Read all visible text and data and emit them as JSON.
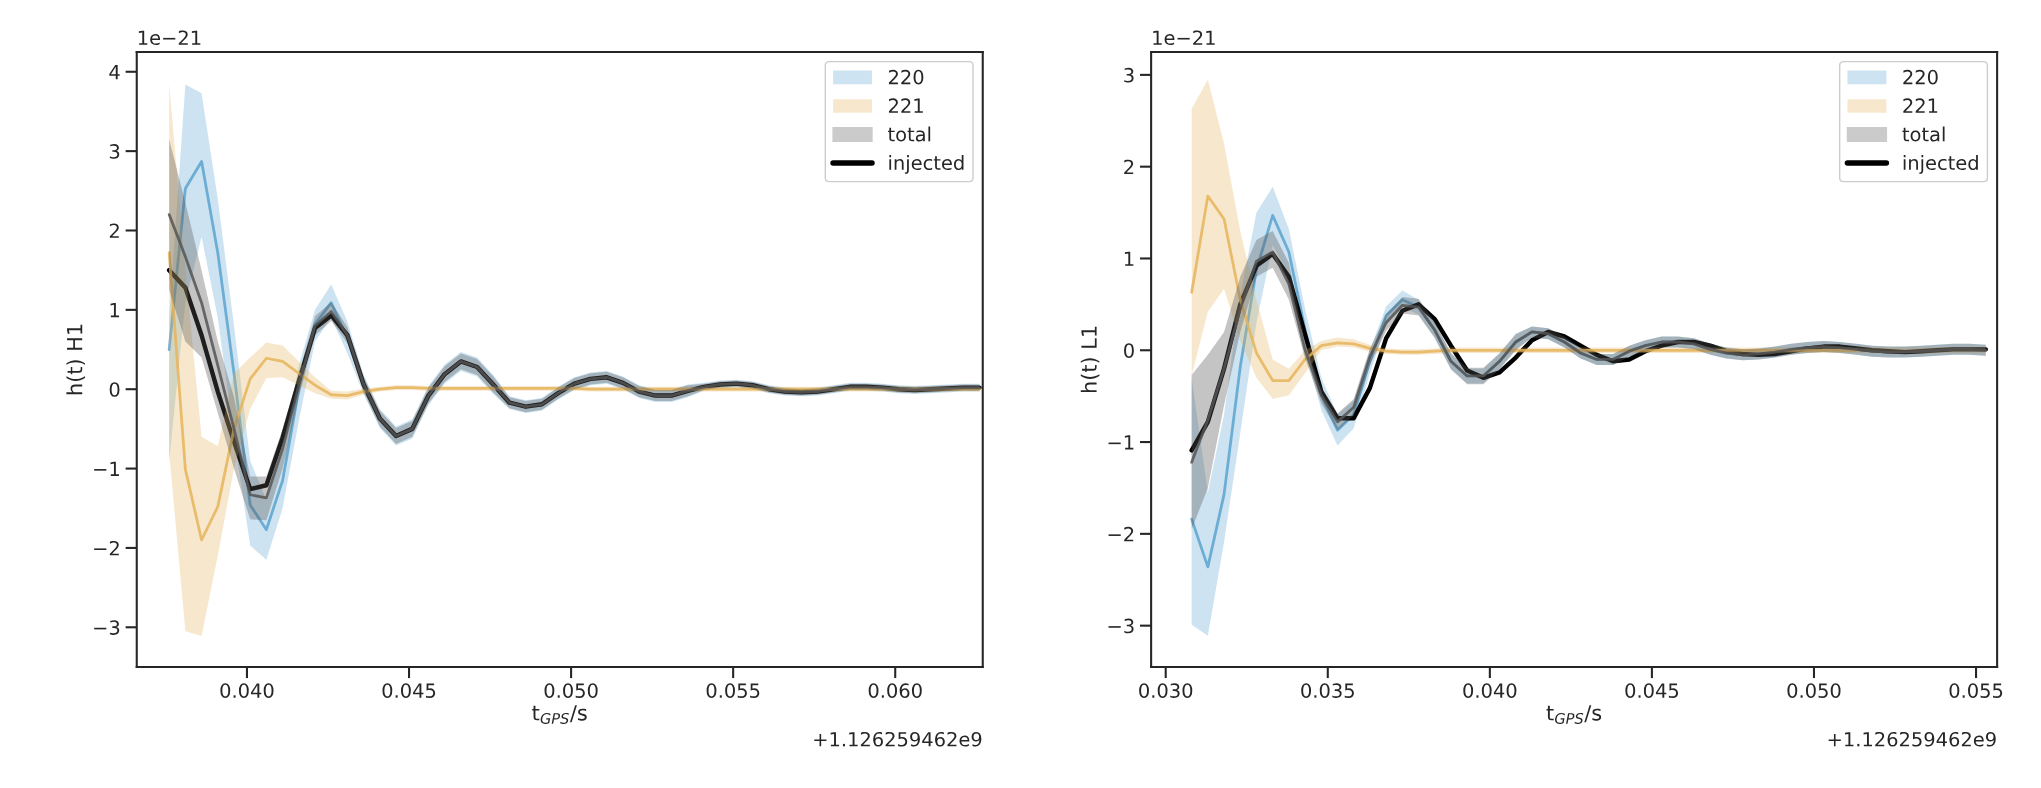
{
  "chart_data": [
    {
      "type": "line",
      "xlabel": "t$_{GPS}$/s",
      "ylabel": "h(t) H1",
      "annotations": [
        "1e−21",
        "+1.126259462e9"
      ],
      "x": [
        0.0376,
        0.0381,
        0.0386,
        0.0391,
        0.0396,
        0.0401,
        0.0406,
        0.0411,
        0.0416,
        0.0421,
        0.0426,
        0.0431,
        0.0436,
        0.0441,
        0.0446,
        0.0451,
        0.0456,
        0.0461,
        0.0466,
        0.0471,
        0.0476,
        0.0481,
        0.0486,
        0.0491,
        0.0496,
        0.0501,
        0.0506,
        0.0511,
        0.0516,
        0.0521,
        0.0526,
        0.0531,
        0.0536,
        0.0541,
        0.0546,
        0.0551,
        0.0556,
        0.0561,
        0.0566,
        0.0571,
        0.0576,
        0.0581,
        0.0586,
        0.0591,
        0.0596,
        0.0601,
        0.0606,
        0.0611,
        0.0616,
        0.0621,
        0.0626
      ],
      "xlim": [
        0.0366,
        0.0627
      ],
      "xticks": [
        {
          "value": 0.04,
          "label": "0.040"
        },
        {
          "value": 0.045,
          "label": "0.045"
        },
        {
          "value": 0.05,
          "label": "0.050"
        },
        {
          "value": 0.055,
          "label": "0.055"
        },
        {
          "value": 0.06,
          "label": "0.060"
        }
      ],
      "ylim": [
        -3.5,
        4.25
      ],
      "yticks": [
        {
          "value": -3,
          "label": "−3"
        },
        {
          "value": -2,
          "label": "−2"
        },
        {
          "value": -1,
          "label": "−1"
        },
        0,
        1,
        2,
        3,
        4
      ],
      "legend": "top right",
      "grid": false,
      "series": [
        {
          "name": "220",
          "color": "#5ba3cf",
          "values": [
            0.5,
            2.53,
            2.87,
            1.72,
            0.2,
            -1.46,
            -1.77,
            -1.15,
            0.0,
            0.82,
            1.09,
            0.64,
            0.06,
            -0.37,
            -0.59,
            -0.5,
            -0.08,
            0.19,
            0.35,
            0.28,
            0.06,
            -0.17,
            -0.22,
            -0.19,
            -0.05,
            0.07,
            0.13,
            0.15,
            0.08,
            -0.03,
            -0.08,
            -0.08,
            -0.02,
            0.03,
            0.06,
            0.07,
            0.05,
            0.0,
            -0.03,
            -0.04,
            -0.03,
            0.0,
            0.03,
            0.03,
            0.02,
            0.0,
            -0.01,
            0.0,
            0.01,
            0.02,
            0.02
          ],
          "lower": [
            -0.9,
            1.1,
            1.92,
            0.9,
            -0.6,
            -1.97,
            -2.15,
            -1.5,
            -0.4,
            0.6,
            0.9,
            0.45,
            -0.06,
            -0.49,
            -0.71,
            -0.62,
            -0.2,
            0.07,
            0.23,
            0.16,
            -0.06,
            -0.25,
            -0.3,
            -0.27,
            -0.13,
            -0.01,
            0.05,
            0.07,
            0.0,
            -0.11,
            -0.16,
            -0.16,
            -0.1,
            -0.02,
            0.01,
            0.02,
            0.0,
            -0.05,
            -0.08,
            -0.09,
            -0.08,
            -0.05,
            -0.02,
            -0.02,
            -0.03,
            -0.05,
            -0.06,
            -0.05,
            -0.04,
            -0.03,
            -0.03
          ],
          "upper": [
            0.9,
            3.84,
            3.73,
            2.4,
            0.8,
            -0.9,
            -1.4,
            -0.8,
            0.3,
            1.0,
            1.32,
            0.85,
            0.18,
            -0.25,
            -0.47,
            -0.38,
            0.04,
            0.31,
            0.47,
            0.4,
            0.18,
            -0.09,
            -0.14,
            -0.11,
            0.03,
            0.15,
            0.21,
            0.23,
            0.16,
            0.05,
            0.0,
            0.0,
            0.06,
            0.08,
            0.11,
            0.12,
            0.1,
            0.05,
            0.02,
            0.01,
            0.02,
            0.05,
            0.08,
            0.08,
            0.07,
            0.05,
            0.04,
            0.05,
            0.06,
            0.07,
            0.07
          ]
        },
        {
          "name": "221",
          "color": "#e6b45a",
          "values": [
            1.72,
            -1.01,
            -1.9,
            -1.48,
            -0.5,
            0.13,
            0.39,
            0.35,
            0.2,
            0.05,
            -0.07,
            -0.08,
            -0.03,
            0.0,
            0.02,
            0.02,
            0.01,
            0.01,
            0.01,
            0.01,
            0.01,
            0.01,
            0.01,
            0.01,
            0.01,
            0.01,
            0.0,
            0.0,
            0.0,
            0.0,
            0.0,
            0.0,
            0.0,
            0.0,
            0.0,
            0.0,
            0.0,
            0.0,
            0.0,
            0.0,
            0.0,
            0.0,
            0.0,
            0.0,
            0.0,
            0.0,
            0.0,
            0.0,
            0.0,
            0.0,
            0.0
          ],
          "lower": [
            -0.8,
            -3.05,
            -3.11,
            -2.1,
            -1.0,
            -0.25,
            0.14,
            0.15,
            0.05,
            -0.05,
            -0.12,
            -0.13,
            -0.07,
            -0.03,
            -0.01,
            -0.01,
            -0.02,
            -0.02,
            -0.02,
            -0.02,
            -0.02,
            -0.02,
            -0.02,
            -0.02,
            -0.02,
            -0.02,
            -0.03,
            -0.03,
            -0.03,
            -0.03,
            -0.03,
            -0.03,
            -0.03,
            -0.03,
            -0.03,
            -0.03,
            -0.03,
            -0.03,
            -0.03,
            -0.03,
            -0.03,
            -0.03,
            -0.03,
            -0.03,
            -0.03,
            -0.03,
            -0.03,
            -0.03,
            -0.03,
            -0.03,
            -0.03
          ],
          "upper": [
            3.85,
            1.5,
            -0.6,
            -0.72,
            0.2,
            0.4,
            0.59,
            0.55,
            0.35,
            0.15,
            -0.02,
            -0.03,
            0.01,
            0.03,
            0.05,
            0.05,
            0.04,
            0.04,
            0.04,
            0.04,
            0.04,
            0.04,
            0.04,
            0.04,
            0.04,
            0.04,
            0.03,
            0.03,
            0.03,
            0.03,
            0.03,
            0.03,
            0.03,
            0.03,
            0.03,
            0.03,
            0.03,
            0.03,
            0.03,
            0.03,
            0.03,
            0.03,
            0.03,
            0.03,
            0.03,
            0.03,
            0.03,
            0.03,
            0.03,
            0.03,
            0.03
          ]
        },
        {
          "name": "total",
          "color": "#555555",
          "values": [
            2.2,
            1.67,
            1.09,
            0.3,
            -0.5,
            -1.33,
            -1.37,
            -0.75,
            0.05,
            0.8,
            0.98,
            0.68,
            0.06,
            -0.37,
            -0.59,
            -0.5,
            -0.08,
            0.19,
            0.35,
            0.28,
            0.06,
            -0.17,
            -0.22,
            -0.19,
            -0.05,
            0.07,
            0.13,
            0.15,
            0.08,
            -0.03,
            -0.08,
            -0.08,
            -0.02,
            0.03,
            0.06,
            0.07,
            0.05,
            0.0,
            -0.03,
            -0.04,
            -0.03,
            0.0,
            0.03,
            0.03,
            0.02,
            0.0,
            -0.01,
            0.0,
            0.01,
            0.02,
            0.02
          ],
          "lower": [
            1.25,
            0.6,
            0.4,
            -0.3,
            -1.0,
            -1.64,
            -1.65,
            -1.0,
            -0.1,
            0.68,
            0.86,
            0.58,
            -0.04,
            -0.47,
            -0.69,
            -0.6,
            -0.18,
            0.09,
            0.25,
            0.18,
            -0.04,
            -0.24,
            -0.29,
            -0.26,
            -0.12,
            0.0,
            0.06,
            0.08,
            0.01,
            -0.1,
            -0.15,
            -0.15,
            -0.09,
            -0.01,
            0.02,
            0.03,
            0.01,
            -0.04,
            -0.07,
            -0.08,
            -0.07,
            -0.04,
            -0.01,
            -0.01,
            -0.02,
            -0.04,
            -0.05,
            -0.04,
            -0.03,
            -0.02,
            -0.02
          ],
          "upper": [
            3.15,
            2.35,
            1.5,
            0.6,
            -0.1,
            -1.1,
            -1.1,
            -0.5,
            0.2,
            0.92,
            1.1,
            0.78,
            0.16,
            -0.27,
            -0.49,
            -0.4,
            0.02,
            0.29,
            0.45,
            0.38,
            0.16,
            -0.1,
            -0.15,
            -0.12,
            0.02,
            0.14,
            0.2,
            0.22,
            0.15,
            0.04,
            -0.01,
            -0.01,
            0.05,
            0.07,
            0.1,
            0.11,
            0.09,
            0.04,
            0.01,
            0.0,
            0.01,
            0.04,
            0.07,
            0.07,
            0.06,
            0.04,
            0.03,
            0.04,
            0.05,
            0.06,
            0.06
          ]
        },
        {
          "name": "injected",
          "color": "#000000",
          "values": [
            1.5,
            1.28,
            0.68,
            -0.03,
            -0.66,
            -1.26,
            -1.21,
            -0.61,
            0.1,
            0.77,
            0.93,
            0.68,
            0.06,
            -0.37,
            -0.59,
            -0.5,
            -0.08,
            0.19,
            0.35,
            0.28,
            0.06,
            -0.17,
            -0.22,
            -0.19,
            -0.05,
            0.07,
            0.13,
            0.15,
            0.08,
            -0.03,
            -0.08,
            -0.08,
            -0.02,
            0.03,
            0.06,
            0.07,
            0.05,
            0.0,
            -0.03,
            -0.04,
            -0.03,
            0.0,
            0.03,
            0.03,
            0.02,
            0.0,
            -0.01,
            0.0,
            0.01,
            0.02,
            0.02
          ]
        }
      ]
    },
    {
      "type": "line",
      "xlabel": "t$_{GPS}$/s",
      "ylabel": "h(t) L1",
      "annotations": [
        "1e−21",
        "+1.126259462e9"
      ],
      "x": [
        0.0308,
        0.0313,
        0.0318,
        0.0323,
        0.0328,
        0.0333,
        0.0338,
        0.0343,
        0.0348,
        0.0353,
        0.0358,
        0.0363,
        0.0368,
        0.0373,
        0.0378,
        0.0383,
        0.0388,
        0.0393,
        0.0398,
        0.0403,
        0.0408,
        0.0413,
        0.0418,
        0.0423,
        0.0428,
        0.0433,
        0.0438,
        0.0443,
        0.0448,
        0.0453,
        0.0458,
        0.0463,
        0.0468,
        0.0473,
        0.0478,
        0.0483,
        0.0488,
        0.0493,
        0.0498,
        0.0503,
        0.0508,
        0.0513,
        0.0518,
        0.0523,
        0.0528,
        0.0533,
        0.0538,
        0.0543,
        0.0548,
        0.0553
      ],
      "xlim": [
        0.02955,
        0.05565
      ],
      "xticks": [
        {
          "value": 0.03,
          "label": "0.030"
        },
        {
          "value": 0.035,
          "label": "0.035"
        },
        {
          "value": 0.04,
          "label": "0.040"
        },
        {
          "value": 0.045,
          "label": "0.045"
        },
        {
          "value": 0.05,
          "label": "0.050"
        },
        {
          "value": 0.055,
          "label": "0.055"
        }
      ],
      "ylim": [
        -3.45,
        3.25
      ],
      "yticks": [
        {
          "value": -3,
          "label": "−3"
        },
        {
          "value": -2,
          "label": "−2"
        },
        {
          "value": -1,
          "label": "−1"
        },
        0,
        1,
        2,
        3
      ],
      "legend": "top right",
      "grid": false,
      "series": [
        {
          "name": "220",
          "color": "#5ba3cf",
          "values": [
            -1.84,
            -2.36,
            -1.57,
            -0.18,
            0.88,
            1.47,
            1.07,
            0.22,
            -0.49,
            -0.87,
            -0.7,
            -0.12,
            0.38,
            0.55,
            0.47,
            0.22,
            -0.12,
            -0.28,
            -0.28,
            -0.12,
            0.09,
            0.2,
            0.18,
            0.09,
            -0.03,
            -0.1,
            -0.1,
            -0.01,
            0.05,
            0.09,
            0.09,
            0.07,
            0.01,
            -0.03,
            -0.05,
            -0.04,
            -0.02,
            0.01,
            0.03,
            0.04,
            0.03,
            0.01,
            -0.01,
            -0.02,
            -0.02,
            -0.01,
            null,
            null,
            null,
            null
          ],
          "lower": [
            -2.99,
            -3.11,
            -2.09,
            -0.9,
            0.3,
            1.15,
            0.8,
            0.0,
            -0.65,
            -1.04,
            -0.85,
            -0.25,
            0.28,
            0.47,
            0.39,
            0.14,
            -0.2,
            -0.36,
            -0.36,
            -0.2,
            0.01,
            0.14,
            0.12,
            0.03,
            -0.09,
            -0.16,
            -0.16,
            -0.07,
            -0.01,
            0.03,
            0.03,
            0.01,
            -0.05,
            -0.09,
            -0.11,
            -0.1,
            -0.08,
            -0.05,
            -0.03,
            -0.02,
            -0.03,
            -0.05,
            -0.07,
            -0.08,
            -0.08,
            -0.07,
            -0.06,
            -0.05,
            -0.05,
            -0.06
          ],
          "upper": [
            -0.3,
            -1.55,
            -0.7,
            0.6,
            1.5,
            1.78,
            1.32,
            0.45,
            -0.3,
            -0.7,
            -0.55,
            0.0,
            0.48,
            0.65,
            0.55,
            0.3,
            -0.04,
            -0.2,
            -0.2,
            -0.04,
            0.17,
            0.26,
            0.24,
            0.15,
            0.03,
            -0.04,
            -0.04,
            0.05,
            0.11,
            0.15,
            0.15,
            0.13,
            0.07,
            0.03,
            0.01,
            0.02,
            0.04,
            0.07,
            0.09,
            0.1,
            0.09,
            0.07,
            0.05,
            0.04,
            0.04,
            0.05,
            0.06,
            0.07,
            0.07,
            0.06
          ]
        },
        {
          "name": "221",
          "color": "#e6b45a",
          "values": [
            0.63,
            1.68,
            1.43,
            0.55,
            -0.03,
            -0.33,
            -0.33,
            -0.1,
            0.05,
            0.08,
            0.07,
            0.02,
            -0.01,
            -0.02,
            -0.02,
            -0.01,
            0.0,
            0.0,
            0.0,
            0.0,
            0.0,
            0.0,
            0.0,
            0.0,
            0.0,
            0.0,
            0.0,
            0.0,
            0.0,
            0.0,
            0.0,
            0.0,
            0.0,
            0.0,
            0.0,
            0.0,
            0.0,
            0.0,
            0.0,
            0.0,
            0.0,
            0.0,
            null,
            null,
            null,
            null,
            null,
            null,
            null,
            null
          ],
          "lower": [
            -0.28,
            0.42,
            0.67,
            0.1,
            -0.3,
            -0.53,
            -0.49,
            -0.25,
            0.0,
            0.04,
            0.03,
            -0.02,
            -0.04,
            -0.05,
            -0.05,
            -0.04,
            -0.03,
            -0.03,
            -0.03,
            -0.03,
            -0.03,
            -0.03,
            -0.03,
            -0.03,
            -0.03,
            -0.03,
            -0.03,
            -0.03,
            -0.03,
            -0.03,
            -0.03,
            -0.03,
            -0.03,
            -0.03,
            -0.03,
            -0.03,
            -0.03,
            -0.03,
            -0.03,
            -0.03,
            -0.03,
            -0.03,
            -0.03,
            -0.03,
            -0.03,
            -0.03,
            -0.03,
            -0.03,
            -0.03,
            -0.03
          ],
          "upper": [
            2.63,
            2.95,
            2.25,
            1.3,
            0.55,
            -0.1,
            -0.2,
            0.0,
            0.1,
            0.14,
            0.12,
            0.06,
            0.02,
            0.01,
            0.01,
            0.02,
            0.03,
            0.03,
            0.03,
            0.03,
            0.03,
            0.03,
            0.03,
            0.03,
            0.03,
            0.03,
            0.03,
            0.03,
            0.03,
            0.03,
            0.03,
            0.03,
            0.03,
            0.03,
            0.03,
            0.03,
            0.03,
            0.03,
            0.03,
            0.03,
            0.03,
            0.03,
            0.03,
            0.03,
            0.03,
            0.03,
            0.03,
            0.03,
            0.03,
            0.03
          ]
        },
        {
          "name": "total",
          "color": "#555555",
          "values": [
            -1.22,
            -0.76,
            -0.2,
            0.45,
            0.97,
            1.07,
            0.72,
            0.0,
            -0.49,
            -0.78,
            -0.62,
            -0.07,
            0.3,
            0.49,
            0.47,
            0.22,
            -0.12,
            -0.28,
            -0.28,
            -0.12,
            0.09,
            0.2,
            0.18,
            0.09,
            -0.03,
            -0.1,
            -0.1,
            -0.01,
            0.05,
            0.09,
            0.09,
            0.07,
            0.01,
            -0.03,
            -0.05,
            -0.04,
            -0.02,
            0.01,
            0.03,
            0.04,
            0.03,
            0.01,
            -0.01,
            -0.02,
            -0.02,
            -0.01,
            0.0,
            0.01,
            0.01,
            0.0
          ],
          "lower": [
            -1.95,
            -1.5,
            -0.6,
            0.2,
            0.8,
            0.9,
            0.55,
            -0.09,
            -0.58,
            -0.87,
            -0.71,
            -0.16,
            0.21,
            0.4,
            0.38,
            0.13,
            -0.21,
            -0.37,
            -0.37,
            -0.21,
            0.0,
            0.14,
            0.12,
            0.03,
            -0.09,
            -0.16,
            -0.16,
            -0.07,
            -0.01,
            0.03,
            0.03,
            0.01,
            -0.05,
            -0.09,
            -0.11,
            -0.1,
            -0.08,
            -0.05,
            -0.03,
            -0.02,
            -0.03,
            -0.05,
            -0.07,
            -0.08,
            -0.08,
            -0.07,
            -0.06,
            -0.05,
            -0.05,
            -0.06
          ],
          "upper": [
            -0.27,
            -0.05,
            0.2,
            0.8,
            1.2,
            1.3,
            0.95,
            0.09,
            -0.4,
            -0.69,
            -0.53,
            0.02,
            0.39,
            0.58,
            0.56,
            0.31,
            -0.03,
            -0.19,
            -0.19,
            -0.03,
            0.18,
            0.26,
            0.24,
            0.15,
            0.03,
            -0.04,
            -0.04,
            0.05,
            0.11,
            0.15,
            0.15,
            0.13,
            0.07,
            0.03,
            0.01,
            0.02,
            0.04,
            0.07,
            0.09,
            0.1,
            0.09,
            0.07,
            0.05,
            0.04,
            0.04,
            0.05,
            0.06,
            0.07,
            0.07,
            0.06
          ]
        },
        {
          "name": "injected",
          "color": "#000000",
          "values": [
            -1.09,
            -0.78,
            -0.2,
            0.5,
            0.92,
            1.05,
            0.8,
            0.17,
            -0.45,
            -0.74,
            -0.74,
            -0.41,
            0.13,
            0.43,
            0.5,
            0.34,
            0.05,
            -0.22,
            -0.3,
            -0.24,
            -0.08,
            0.11,
            0.2,
            0.15,
            0.05,
            -0.05,
            -0.12,
            -0.1,
            -0.01,
            0.05,
            0.09,
            0.09,
            0.05,
            -0.01,
            -0.04,
            -0.05,
            -0.04,
            -0.01,
            0.02,
            0.04,
            0.04,
            0.02,
            0.0,
            -0.01,
            -0.02,
            -0.01,
            0.0,
            0.01,
            0.01,
            0.01
          ]
        }
      ]
    }
  ]
}
